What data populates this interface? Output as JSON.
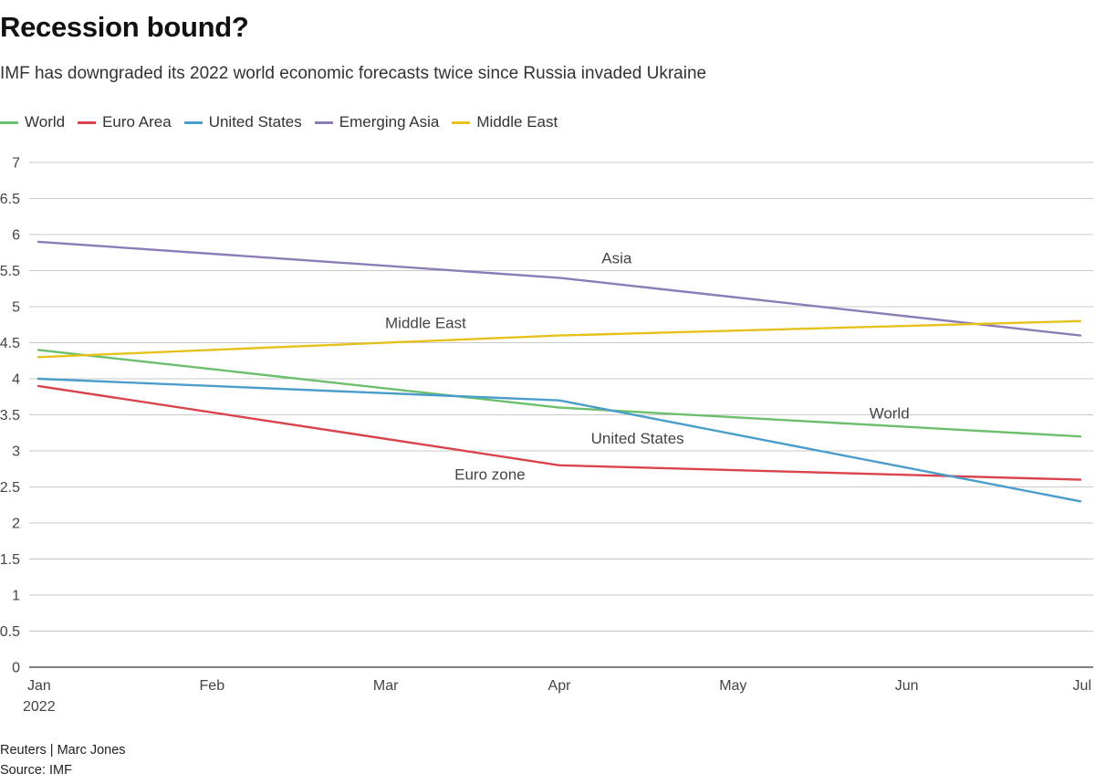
{
  "header": {
    "title": "Recession bound?",
    "subtitle": "IMF has downgraded its 2022 world economic forecasts twice since Russia invaded Ukraine"
  },
  "footer": {
    "credit": "Reuters | Marc Jones",
    "source": "Source: IMF"
  },
  "colors": {
    "World": "#6cbf6c",
    "Euro Area": "#d9434b",
    "United States": "#4a9ccb",
    "Emerging Asia": "#8b7db8",
    "Middle East": "#e6c11c"
  },
  "chart_data": {
    "type": "line",
    "title": "Recession bound?",
    "xlabel": "",
    "ylabel": "",
    "x": [
      "Jan",
      "Feb",
      "Mar",
      "Apr",
      "May",
      "Jun",
      "Jul"
    ],
    "x_sublabels": [
      "2022",
      "",
      "",
      "",
      "",
      "",
      ""
    ],
    "ylim": [
      0,
      7
    ],
    "yticks": [
      0,
      0.5,
      1,
      1.5,
      2,
      2.5,
      3,
      3.5,
      4,
      4.5,
      5,
      5.5,
      6,
      6.5,
      7
    ],
    "ytick_labels": [
      "0",
      "0.5",
      "1",
      "1.5",
      "2",
      "2.5",
      "3",
      "3.5",
      "4",
      "4.5",
      "5",
      "5.5",
      "6",
      "6.5",
      "7"
    ],
    "grid": true,
    "legend": "top-left",
    "series": [
      {
        "name": "World",
        "x": [
          "Jan",
          "Apr",
          "Jul"
        ],
        "values": [
          4.4,
          3.6,
          3.2
        ]
      },
      {
        "name": "Euro Area",
        "x": [
          "Jan",
          "Apr",
          "Jul"
        ],
        "values": [
          3.9,
          2.8,
          2.6
        ]
      },
      {
        "name": "United States",
        "x": [
          "Jan",
          "Apr",
          "Jul"
        ],
        "values": [
          4.0,
          3.7,
          2.3
        ]
      },
      {
        "name": "Emerging Asia",
        "x": [
          "Jan",
          "Apr",
          "Jul"
        ],
        "values": [
          5.9,
          5.4,
          4.6
        ]
      },
      {
        "name": "Middle East",
        "x": [
          "Jan",
          "Apr",
          "Jul"
        ],
        "values": [
          4.3,
          4.6,
          4.8
        ]
      }
    ],
    "annotations": [
      {
        "text": "Asia",
        "x": "Apr",
        "x_offset_months": 0.33,
        "y": 5.6
      },
      {
        "text": "Middle East",
        "x": "Mar",
        "x_offset_months": 0.23,
        "y": 4.7
      },
      {
        "text": "World",
        "x": "Jun",
        "x_offset_months": -0.1,
        "y": 3.45
      },
      {
        "text": "United States",
        "x": "Apr",
        "x_offset_months": 0.45,
        "y": 3.1
      },
      {
        "text": "Euro zone",
        "x": "Mar",
        "x_offset_months": 0.6,
        "y": 2.6
      }
    ]
  }
}
